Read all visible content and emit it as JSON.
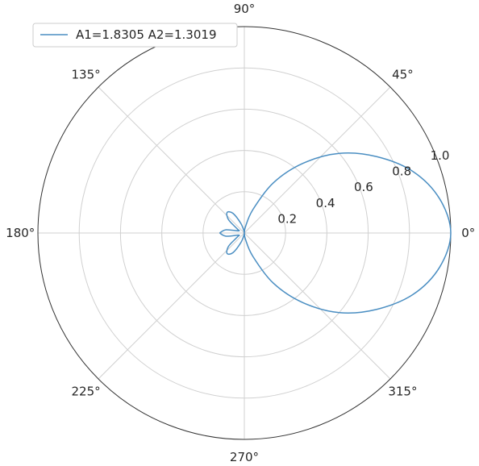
{
  "chart_data": {
    "type": "line",
    "projection": "polar",
    "title": "",
    "legend": {
      "placement": "top-left",
      "entries": [
        "A1=1.8305 A2=1.3019"
      ]
    },
    "angle_tick_labels": [
      "0°",
      "45°",
      "90°",
      "135°",
      "180°",
      "225°",
      "270°",
      "315°"
    ],
    "angle_ticks_deg": [
      0,
      45,
      90,
      135,
      180,
      225,
      270,
      315
    ],
    "radial_ticks": [
      0.2,
      0.4,
      0.6,
      0.8,
      1.0
    ],
    "radial_tick_labels": [
      "0.2",
      "0.4",
      "0.6",
      "0.8",
      "1.0"
    ],
    "rlim": [
      0,
      1.0
    ],
    "grid": true,
    "series": [
      {
        "name": "A1=1.8305 A2=1.3019",
        "color": "#4a8ec2",
        "theta_deg": [
          -180,
          -170,
          -160,
          -150,
          -140,
          -130,
          -120,
          -110,
          -100,
          -90,
          -80,
          -70,
          -60,
          -50,
          -40,
          -30,
          -20,
          -10,
          0,
          10,
          20,
          30,
          40,
          50,
          60,
          70,
          80,
          90,
          100,
          110,
          120,
          130,
          140,
          150,
          160,
          170,
          180
        ],
        "r": [
          0.12,
          0.09,
          0.03,
          0.04,
          0.1,
          0.13,
          0.11,
          0.05,
          0.01,
          0.0,
          0.03,
          0.12,
          0.28,
          0.44,
          0.6,
          0.74,
          0.87,
          0.96,
          1.0,
          0.96,
          0.87,
          0.74,
          0.6,
          0.44,
          0.28,
          0.12,
          0.03,
          0.0,
          0.01,
          0.05,
          0.11,
          0.13,
          0.1,
          0.04,
          0.03,
          0.09,
          0.12
        ]
      }
    ]
  }
}
